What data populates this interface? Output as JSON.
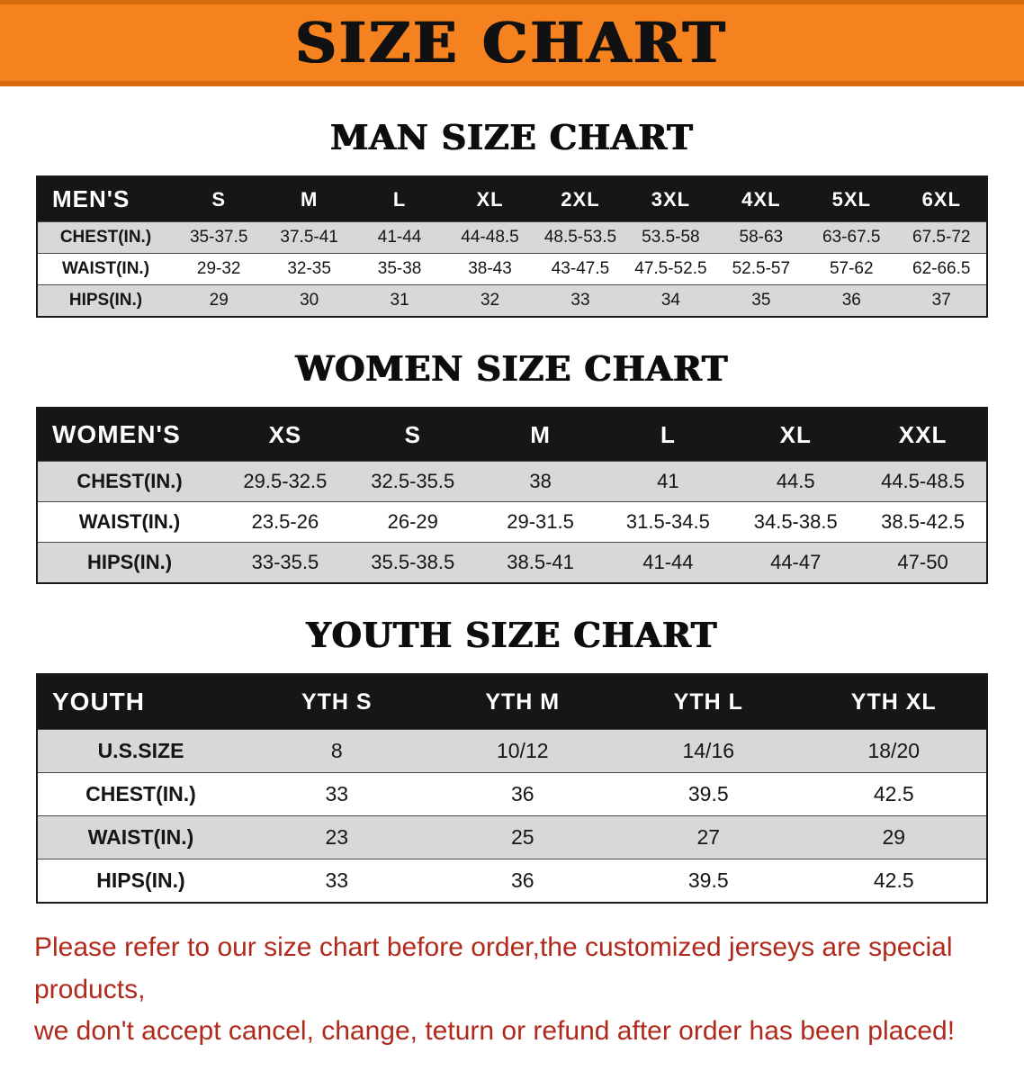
{
  "banner": {
    "title": "SIZE CHART"
  },
  "colors": {
    "banner_bg": "#f5821f",
    "banner_edge": "#d96c0e",
    "header_bg": "#161616",
    "stripe": "#d8d8d8",
    "notice_red": "#b02a1c"
  },
  "sections": [
    {
      "id": "men",
      "heading": "MAN SIZE CHART",
      "table": {
        "header": [
          "MEN'S",
          "S",
          "M",
          "L",
          "XL",
          "2XL",
          "3XL",
          "4XL",
          "5XL",
          "6XL"
        ],
        "rows": [
          [
            "CHEST(IN.)",
            "35-37.5",
            "37.5-41",
            "41-44",
            "44-48.5",
            "48.5-53.5",
            "53.5-58",
            "58-63",
            "63-67.5",
            "67.5-72"
          ],
          [
            "WAIST(IN.)",
            "29-32",
            "32-35",
            "35-38",
            "38-43",
            "43-47.5",
            "47.5-52.5",
            "52.5-57",
            "57-62",
            "62-66.5"
          ],
          [
            "HIPS(IN.)",
            "29",
            "30",
            "31",
            "32",
            "33",
            "34",
            "35",
            "36",
            "37"
          ]
        ]
      }
    },
    {
      "id": "women",
      "heading": "WOMEN SIZE CHART",
      "table": {
        "header": [
          "WOMEN'S",
          "XS",
          "S",
          "M",
          "L",
          "XL",
          "XXL"
        ],
        "rows": [
          [
            "CHEST(IN.)",
            "29.5-32.5",
            "32.5-35.5",
            "38",
            "41",
            "44.5",
            "44.5-48.5"
          ],
          [
            "WAIST(IN.)",
            "23.5-26",
            "26-29",
            "29-31.5",
            "31.5-34.5",
            "34.5-38.5",
            "38.5-42.5"
          ],
          [
            "HIPS(IN.)",
            "33-35.5",
            "35.5-38.5",
            "38.5-41",
            "41-44",
            "44-47",
            "47-50"
          ]
        ]
      }
    },
    {
      "id": "youth",
      "heading": "YOUTH SIZE CHART",
      "table": {
        "header": [
          "YOUTH",
          "YTH S",
          "YTH M",
          "YTH L",
          "YTH XL"
        ],
        "rows": [
          [
            "U.S.SIZE",
            "8",
            "10/12",
            "14/16",
            "18/20"
          ],
          [
            "CHEST(IN.)",
            "33",
            "36",
            "39.5",
            "42.5"
          ],
          [
            "WAIST(IN.)",
            "23",
            "25",
            "27",
            "29"
          ],
          [
            "HIPS(IN.)",
            "33",
            "36",
            "39.5",
            "42.5"
          ]
        ]
      }
    }
  ],
  "notice": {
    "line1": "Please refer to our size chart before order,the customized jerseys are special products,",
    "line2": "we don't accept cancel, change, teturn or refund after order has been placed!"
  }
}
